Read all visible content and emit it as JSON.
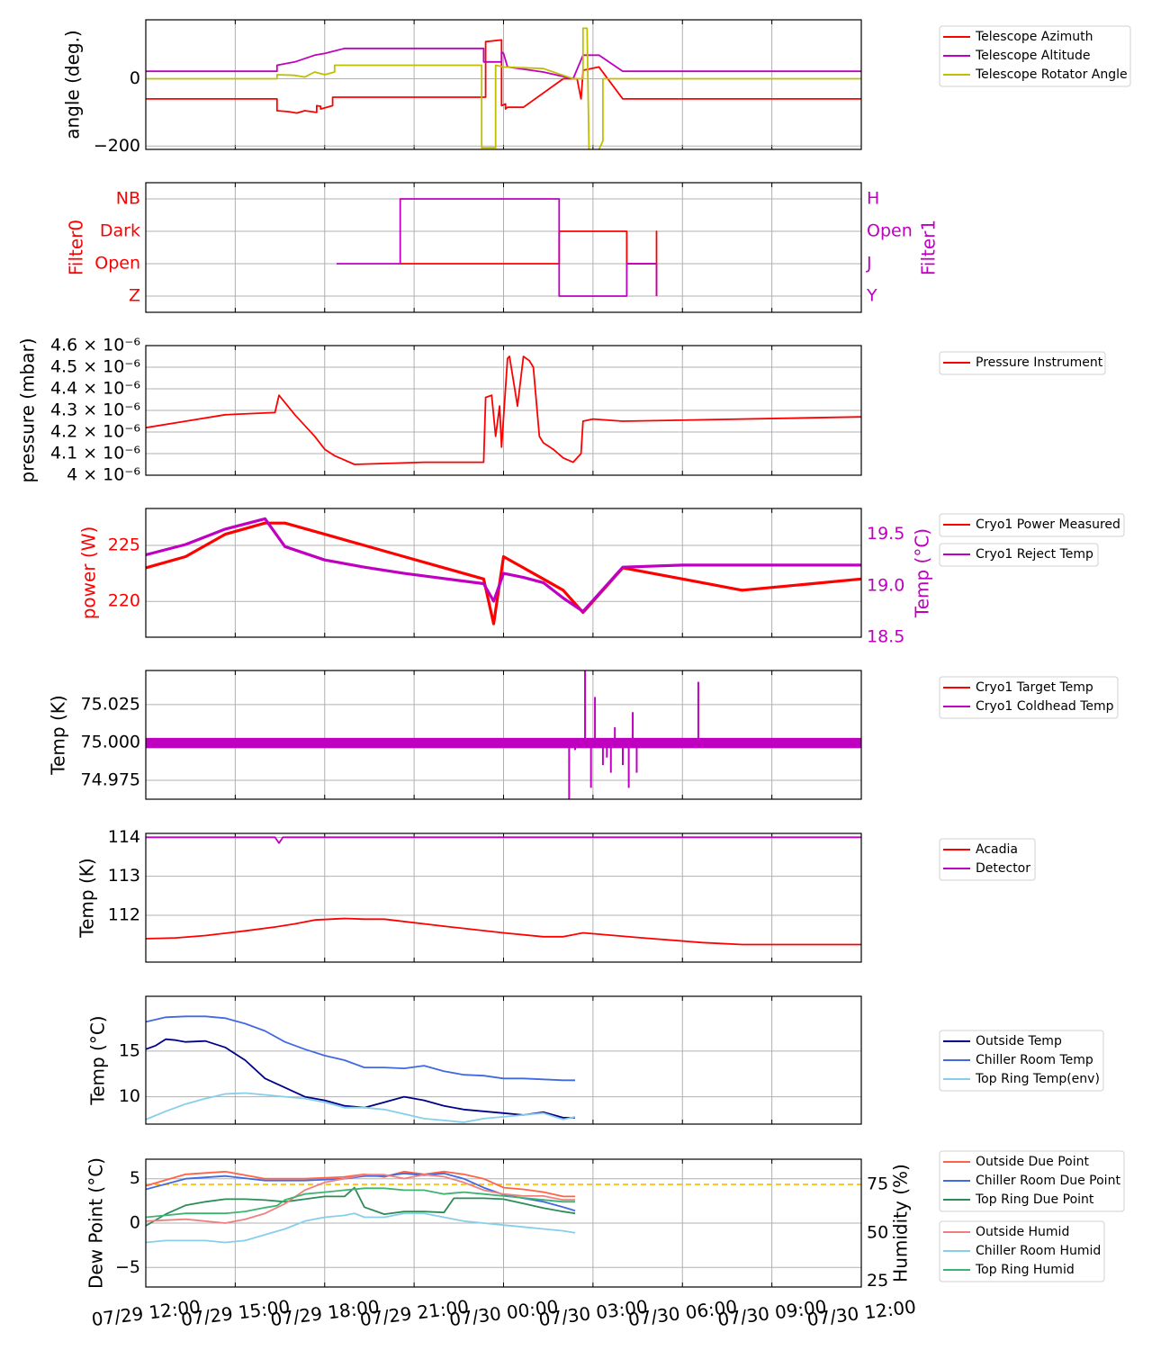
{
  "x_ticks": [
    "07/29 12:00",
    "07/29 15:00",
    "07/29 18:00",
    "07/29 21:00",
    "07/30 00:00",
    "07/30 03:00",
    "07/30 06:00",
    "07/30 09:00",
    "07/30 12:00"
  ],
  "chart_data": [
    {
      "type": "line",
      "id": "p1",
      "ylabel": "angle (deg.)",
      "ylim": [
        -210,
        175
      ],
      "yticks": [
        0,
        -200
      ],
      "grid": true,
      "legend_placement": "right",
      "series": [
        {
          "name": "Telescope Azimuth",
          "color": "#ff0000",
          "x": [
            0,
            6.6,
            6.6,
            7.2,
            7.6,
            8.0,
            8.6,
            8.6,
            8.8,
            8.8,
            9.4,
            9.4,
            13.0,
            17.1,
            17.1,
            17.9,
            17.9,
            18.1,
            18.1,
            18.2,
            19.0,
            21.0,
            21.7,
            21.9,
            22.0,
            22.0,
            22.8,
            24.0,
            36.0
          ],
          "y": [
            -60,
            -60,
            -95,
            -98,
            -102,
            -95,
            -100,
            -80,
            -82,
            -90,
            -80,
            -55,
            -55,
            -55,
            110,
            115,
            -80,
            -75,
            -90,
            -85,
            -85,
            0,
            0,
            -60,
            20,
            25,
            35,
            -60,
            -60
          ]
        },
        {
          "name": "Telescope Altitude",
          "color": "#c000c0",
          "x": [
            0,
            6.6,
            6.6,
            7.5,
            8.5,
            9.0,
            10.0,
            15.0,
            17.0,
            17.0,
            17.9,
            17.9,
            18.0,
            18.2,
            20.0,
            21.5,
            22.0,
            22.8,
            24.0,
            36.0
          ],
          "y": [
            22,
            22,
            40,
            50,
            70,
            75,
            90,
            90,
            90,
            50,
            50,
            80,
            75,
            35,
            20,
            0,
            70,
            70,
            22,
            22
          ]
        },
        {
          "name": "Telescope Rotator Angle",
          "color": "#bfbf00",
          "x": [
            0,
            6.6,
            6.6,
            7.5,
            8.0,
            8.5,
            9.0,
            9.5,
            9.5,
            16.9,
            16.9,
            17.6,
            17.6,
            18.0,
            20.0,
            21.5,
            22.0,
            22.0,
            22.2,
            22.3,
            22.8,
            23.0,
            23.0,
            36.0
          ],
          "y": [
            0,
            0,
            12,
            10,
            5,
            20,
            12,
            20,
            40,
            40,
            -205,
            -205,
            40,
            35,
            30,
            0,
            0,
            150,
            150,
            -215,
            -210,
            -185,
            0,
            0
          ]
        }
      ]
    },
    {
      "type": "line",
      "id": "p2",
      "ylabel": "Filter0",
      "ylabel2": "Filter1",
      "yticklabels_left": [
        "NB",
        "Dark",
        "Open",
        "Z"
      ],
      "yticklabels_right": [
        "H",
        "Open",
        "J",
        "Y"
      ],
      "grid": true,
      "series": [
        {
          "name": "Filter0",
          "color": "#ff0000",
          "x": [
            12.8,
            20.8,
            20.8,
            24.2,
            24.2,
            25.7,
            25.7,
            25.7
          ],
          "y": [
            1,
            1,
            2,
            2,
            1,
            1,
            2,
            0
          ]
        },
        {
          "name": "Filter1",
          "color": "#c000c0",
          "x": [
            9.6,
            12.8,
            12.8,
            20.8,
            20.8,
            24.2,
            24.2,
            25.7,
            25.7
          ],
          "y": [
            1,
            1,
            3,
            3,
            0,
            0,
            1,
            1,
            0
          ]
        }
      ]
    },
    {
      "type": "line",
      "id": "p3",
      "ylabel": "pressure (mbar)",
      "ylim": [
        4e-06,
        4.6e-06
      ],
      "yticklabels": [
        "4.6 × 10⁻⁶",
        "4.5 × 10⁻⁶",
        "4.4 × 10⁻⁶",
        "4.3 × 10⁻⁶",
        "4.2 × 10⁻⁶",
        "4.1 × 10⁻⁶",
        "4 × 10⁻⁶"
      ],
      "grid": true,
      "legend_placement": "right",
      "series": [
        {
          "name": "Pressure Instrument",
          "color": "#ff0000",
          "x": [
            0,
            2.0,
            4.0,
            6.5,
            6.7,
            7.5,
            8.5,
            9.0,
            9.5,
            10.5,
            14.0,
            17.0,
            17.1,
            17.4,
            17.6,
            17.8,
            17.9,
            18.2,
            18.3,
            18.7,
            19.0,
            19.3,
            19.5,
            19.8,
            20.0,
            20.5,
            21.0,
            21.5,
            21.9,
            22.0,
            22.5,
            24.0,
            36.0
          ],
          "y": [
            4.22e-06,
            4.25e-06,
            4.28e-06,
            4.29e-06,
            4.37e-06,
            4.28e-06,
            4.18e-06,
            4.12e-06,
            4.09e-06,
            4.05e-06,
            4.06e-06,
            4.06e-06,
            4.36e-06,
            4.37e-06,
            4.18e-06,
            4.32e-06,
            4.13e-06,
            4.54e-06,
            4.55e-06,
            4.32e-06,
            4.55e-06,
            4.53e-06,
            4.5e-06,
            4.18e-06,
            4.15e-06,
            4.12e-06,
            4.08e-06,
            4.06e-06,
            4.1e-06,
            4.25e-06,
            4.26e-06,
            4.25e-06,
            4.27e-06
          ]
        }
      ]
    },
    {
      "type": "line",
      "id": "p4",
      "ylabel": "power (W)",
      "ylabel2": "Temp (°C)",
      "ylim": [
        216.8,
        228.3
      ],
      "y2lim": [
        18.5,
        19.75
      ],
      "yticks": [
        220,
        225
      ],
      "y2ticks": [
        18.5,
        19.0,
        19.5
      ],
      "grid": true,
      "legend_placement": "right",
      "series": [
        {
          "name": "Cryo1 Power Measured",
          "color": "#ff0000",
          "axis": "left",
          "x": [
            0,
            2,
            4,
            6,
            7,
            9,
            11,
            13,
            15,
            17,
            17.5,
            18,
            19,
            20,
            21,
            22,
            24,
            27,
            30,
            33,
            36
          ],
          "y": [
            223,
            224,
            226,
            227,
            227,
            226,
            225,
            224,
            223,
            222,
            218,
            224,
            223,
            222,
            221,
            219,
            223,
            222,
            221,
            221.5,
            222
          ]
        },
        {
          "name": "Cryo1 Reject Temp",
          "color": "#c000c0",
          "axis": "right",
          "x": [
            0,
            2,
            4,
            6,
            7,
            9,
            11,
            13,
            15,
            17,
            17.5,
            18,
            19,
            20,
            21,
            22,
            24,
            27,
            30,
            33,
            36
          ],
          "y": [
            19.3,
            19.4,
            19.55,
            19.65,
            19.38,
            19.25,
            19.18,
            19.12,
            19.07,
            19.02,
            18.85,
            19.12,
            19.08,
            19.03,
            18.88,
            18.75,
            19.18,
            19.2,
            19.2,
            19.2,
            19.2
          ]
        }
      ]
    },
    {
      "type": "line",
      "id": "p5",
      "ylabel": "Temp (K)",
      "ylim": [
        74.9625,
        75.0475
      ],
      "yticks": [
        75.025,
        75.0,
        74.975
      ],
      "yticklabels": [
        "75.025",
        "75.000",
        "74.975"
      ],
      "grid": true,
      "legend_placement": "right",
      "series": [
        {
          "name": "Cryo1 Target Temp",
          "color": "#ff0000",
          "x": [
            0,
            36
          ],
          "y": [
            75.0,
            75.0
          ]
        },
        {
          "name": "Cryo1 Coldhead Temp",
          "color": "#c000c0",
          "x": [
            0,
            36
          ],
          "y": [
            75.0,
            75.0
          ]
        }
      ]
    },
    {
      "type": "line",
      "id": "p6",
      "ylabel": "Temp (K)",
      "ylim": [
        110.8,
        114.1
      ],
      "yticks": [
        112,
        113,
        114
      ],
      "grid": true,
      "legend_placement": "right",
      "series": [
        {
          "name": "Acadia",
          "color": "#ff0000",
          "x": [
            0,
            1.5,
            3,
            5,
            6.5,
            7.5,
            8.5,
            10,
            11,
            12,
            15,
            18,
            20,
            21,
            22,
            25,
            28,
            30,
            33,
            36
          ],
          "y": [
            111.4,
            111.42,
            111.48,
            111.6,
            111.7,
            111.78,
            111.88,
            111.92,
            111.9,
            111.9,
            111.72,
            111.55,
            111.45,
            111.45,
            111.55,
            111.42,
            111.3,
            111.25,
            111.25,
            111.25
          ]
        },
        {
          "name": "Detector",
          "color": "#c000c0",
          "x": [
            0,
            6.5,
            6.7,
            6.9,
            36
          ],
          "y": [
            114.0,
            114.0,
            113.85,
            114.0,
            114.0
          ]
        }
      ]
    },
    {
      "type": "line",
      "id": "p7",
      "ylabel": "Temp (°C)",
      "ylim": [
        7.0,
        21.0
      ],
      "yticks": [
        10,
        15
      ],
      "grid": true,
      "legend_placement": "right",
      "series": [
        {
          "name": "Outside Temp",
          "color": "#00008b",
          "x": [
            0,
            0.5,
            1,
            1.5,
            2,
            3,
            4,
            5,
            6,
            7,
            8,
            9,
            10,
            11,
            12,
            13,
            14,
            15,
            16,
            17,
            18,
            19,
            20,
            21,
            21.6
          ],
          "y": [
            15.2,
            15.6,
            16.3,
            16.2,
            16.0,
            16.1,
            15.4,
            14.0,
            12.0,
            11.0,
            10.0,
            9.6,
            9.0,
            8.8,
            9.4,
            10.0,
            9.6,
            9.0,
            8.6,
            8.4,
            8.2,
            8.0,
            8.3,
            7.7,
            7.7
          ]
        },
        {
          "name": "Chiller Room Temp",
          "color": "#4169e1",
          "x": [
            0,
            1,
            2,
            3,
            4,
            5,
            6,
            7,
            8,
            9,
            10,
            11,
            12,
            13,
            14,
            15,
            16,
            17,
            18,
            19,
            20,
            21,
            21.6
          ],
          "y": [
            18.2,
            18.7,
            18.8,
            18.8,
            18.6,
            18.0,
            17.2,
            16.0,
            15.2,
            14.5,
            14.0,
            13.2,
            13.2,
            13.1,
            13.4,
            12.8,
            12.4,
            12.3,
            12.0,
            12.0,
            11.9,
            11.8,
            11.8
          ]
        },
        {
          "name": "Top Ring Temp(env)",
          "color": "#87ceeb",
          "x": [
            0,
            1,
            2,
            3,
            4,
            5,
            6,
            7,
            8,
            9,
            10,
            11,
            12,
            13,
            14,
            15,
            16,
            17,
            18,
            19,
            20,
            21,
            21.6
          ],
          "y": [
            7.5,
            8.4,
            9.2,
            9.8,
            10.3,
            10.4,
            10.2,
            10.0,
            9.8,
            9.4,
            8.8,
            8.8,
            8.6,
            8.1,
            7.6,
            7.4,
            7.2,
            7.6,
            7.8,
            8.0,
            8.2,
            7.5,
            7.8
          ]
        }
      ]
    },
    {
      "type": "line",
      "id": "p8",
      "ylabel": "Dew Point (°C)",
      "ylabel2": "Humidity (%)",
      "ylim": [
        -7.2,
        7.2
      ],
      "y2lim": [
        22,
        88
      ],
      "yticks": [
        -5,
        0,
        5
      ],
      "y2ticks": [
        25,
        50,
        75
      ],
      "threshold": {
        "axis": "right",
        "value": 75,
        "color": "#ffc000"
      },
      "grid": true,
      "legend_placement": "right",
      "series": [
        {
          "name": "Outside Due Point",
          "color": "#ff6347",
          "axis": "left",
          "x": [
            0,
            2,
            4,
            6,
            8,
            10,
            11,
            12,
            13,
            14,
            15,
            16,
            17,
            18,
            19,
            20,
            21,
            21.6
          ],
          "y": [
            4.2,
            5.5,
            5.8,
            5.0,
            5.0,
            5.2,
            5.5,
            5.2,
            5.8,
            5.5,
            5.8,
            5.5,
            5.0,
            4.0,
            3.8,
            3.5,
            3.0,
            3.0
          ]
        },
        {
          "name": "Chiller Room Due Point",
          "color": "#4169e1",
          "axis": "left",
          "x": [
            0,
            2,
            4,
            6,
            8,
            10,
            11,
            12,
            13,
            14,
            15,
            16,
            17,
            18,
            19,
            20,
            21,
            21.6
          ],
          "y": [
            3.8,
            5.0,
            5.3,
            4.8,
            4.8,
            5.0,
            5.3,
            5.3,
            5.6,
            5.4,
            5.6,
            5.0,
            4.0,
            3.2,
            2.8,
            2.4,
            1.8,
            1.4
          ]
        },
        {
          "name": "Top Ring Due Point",
          "color": "#2e8b57",
          "axis": "left",
          "x": [
            0,
            1,
            2,
            3,
            4,
            5,
            6,
            7,
            8,
            9,
            10,
            10.5,
            11,
            12,
            13,
            14,
            15,
            15.5,
            16,
            17,
            18,
            19,
            20,
            21,
            21.6
          ],
          "y": [
            -0.3,
            1.0,
            2.0,
            2.4,
            2.7,
            2.7,
            2.6,
            2.4,
            2.7,
            3.0,
            3.0,
            4.0,
            1.8,
            1.0,
            1.3,
            1.3,
            1.2,
            2.8,
            2.8,
            2.8,
            2.7,
            2.2,
            1.7,
            1.3,
            1.1
          ]
        },
        {
          "name": "Outside Humid",
          "color": "#f08080",
          "axis": "right",
          "x": [
            0,
            2,
            4,
            5,
            6,
            7,
            8,
            9,
            10,
            11,
            12,
            13,
            14,
            15,
            16,
            17,
            18,
            19,
            20,
            21,
            21.6
          ],
          "y": [
            56,
            57,
            55,
            57,
            60,
            65,
            72,
            76,
            78,
            80,
            80,
            78,
            80,
            79,
            76,
            72,
            70,
            69,
            69,
            67,
            67
          ]
        },
        {
          "name": "Chiller Room Humid",
          "color": "#87ceeb",
          "axis": "right",
          "x": [
            0,
            1,
            2,
            3,
            4,
            5,
            6,
            7,
            8,
            9,
            10,
            10.5,
            11,
            12,
            13,
            14,
            15,
            16,
            17,
            18,
            19,
            20,
            21,
            21.6
          ],
          "y": [
            45,
            46,
            46,
            46,
            45,
            46,
            49,
            52,
            56,
            58,
            59,
            60,
            58,
            58,
            60,
            60,
            58,
            56,
            55,
            54,
            53,
            52,
            51,
            50
          ]
        },
        {
          "name": "Top Ring Humid",
          "color": "#3cb371",
          "axis": "right",
          "x": [
            0,
            1,
            2,
            3,
            4,
            5,
            6,
            6.6,
            7,
            8,
            9,
            10,
            11,
            12,
            13,
            14,
            15,
            16,
            17,
            18,
            19,
            20,
            21,
            21.6
          ],
          "y": [
            58,
            59,
            60,
            60,
            60,
            61,
            63,
            64,
            67,
            70,
            71,
            72,
            73,
            73,
            72,
            72,
            70,
            71,
            70,
            69,
            68,
            67,
            66,
            66
          ]
        }
      ]
    }
  ]
}
